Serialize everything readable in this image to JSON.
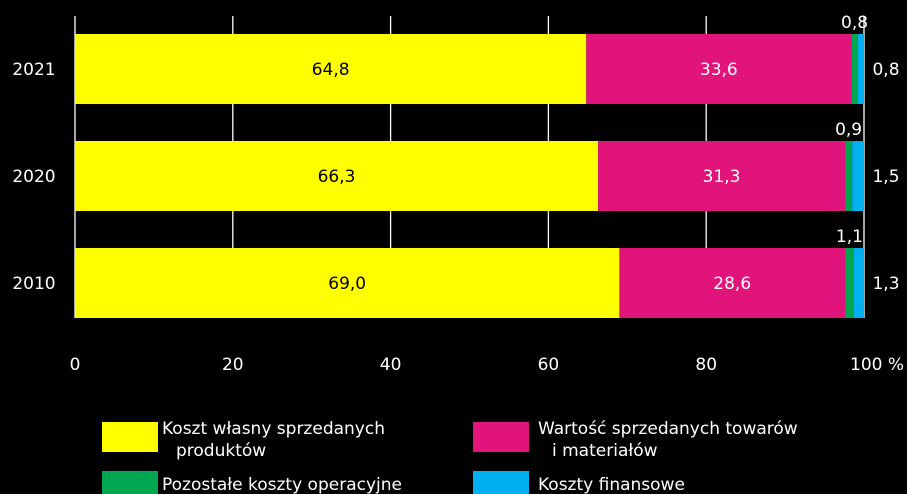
{
  "chart_data": {
    "type": "bar",
    "orientation": "horizontal",
    "stacked": true,
    "categories": [
      "2021",
      "2020",
      "2010"
    ],
    "series": [
      {
        "name": "Koszt własny sprzedanych produktów",
        "legend_lines": [
          "Koszt własny sprzedanych",
          "produktów"
        ],
        "color": "#ffff00",
        "values": [
          64.8,
          66.3,
          69.0
        ],
        "labels": [
          "64,8",
          "66,3",
          "69,0"
        ]
      },
      {
        "name": "Wartość sprzedanych towarów i materiałów",
        "legend_lines": [
          "Wartość sprzedanych towarów",
          "i materiałów"
        ],
        "color": "#e0147a",
        "values": [
          33.6,
          31.3,
          28.6
        ],
        "labels": [
          "33,6",
          "31,3",
          "28,6"
        ]
      },
      {
        "name": "Pozostałe koszty operacyjne",
        "legend_lines": [
          "Pozostałe koszty operacyjne"
        ],
        "color": "#00a650",
        "values": [
          0.8,
          0.9,
          1.1
        ],
        "labels": [
          "0,8",
          "0,9",
          "1,1"
        ]
      },
      {
        "name": "Koszty finansowe",
        "legend_lines": [
          "Koszty finansowe"
        ],
        "color": "#00b0f0",
        "values": [
          0.8,
          1.5,
          1.3
        ],
        "labels": [
          "0,8",
          "1,5",
          "1,3"
        ]
      }
    ],
    "xlim": [
      0,
      100
    ],
    "xticks": [
      "0",
      "20",
      "40",
      "60",
      "80",
      "100 %"
    ],
    "grid": true,
    "legend": "bottom"
  }
}
